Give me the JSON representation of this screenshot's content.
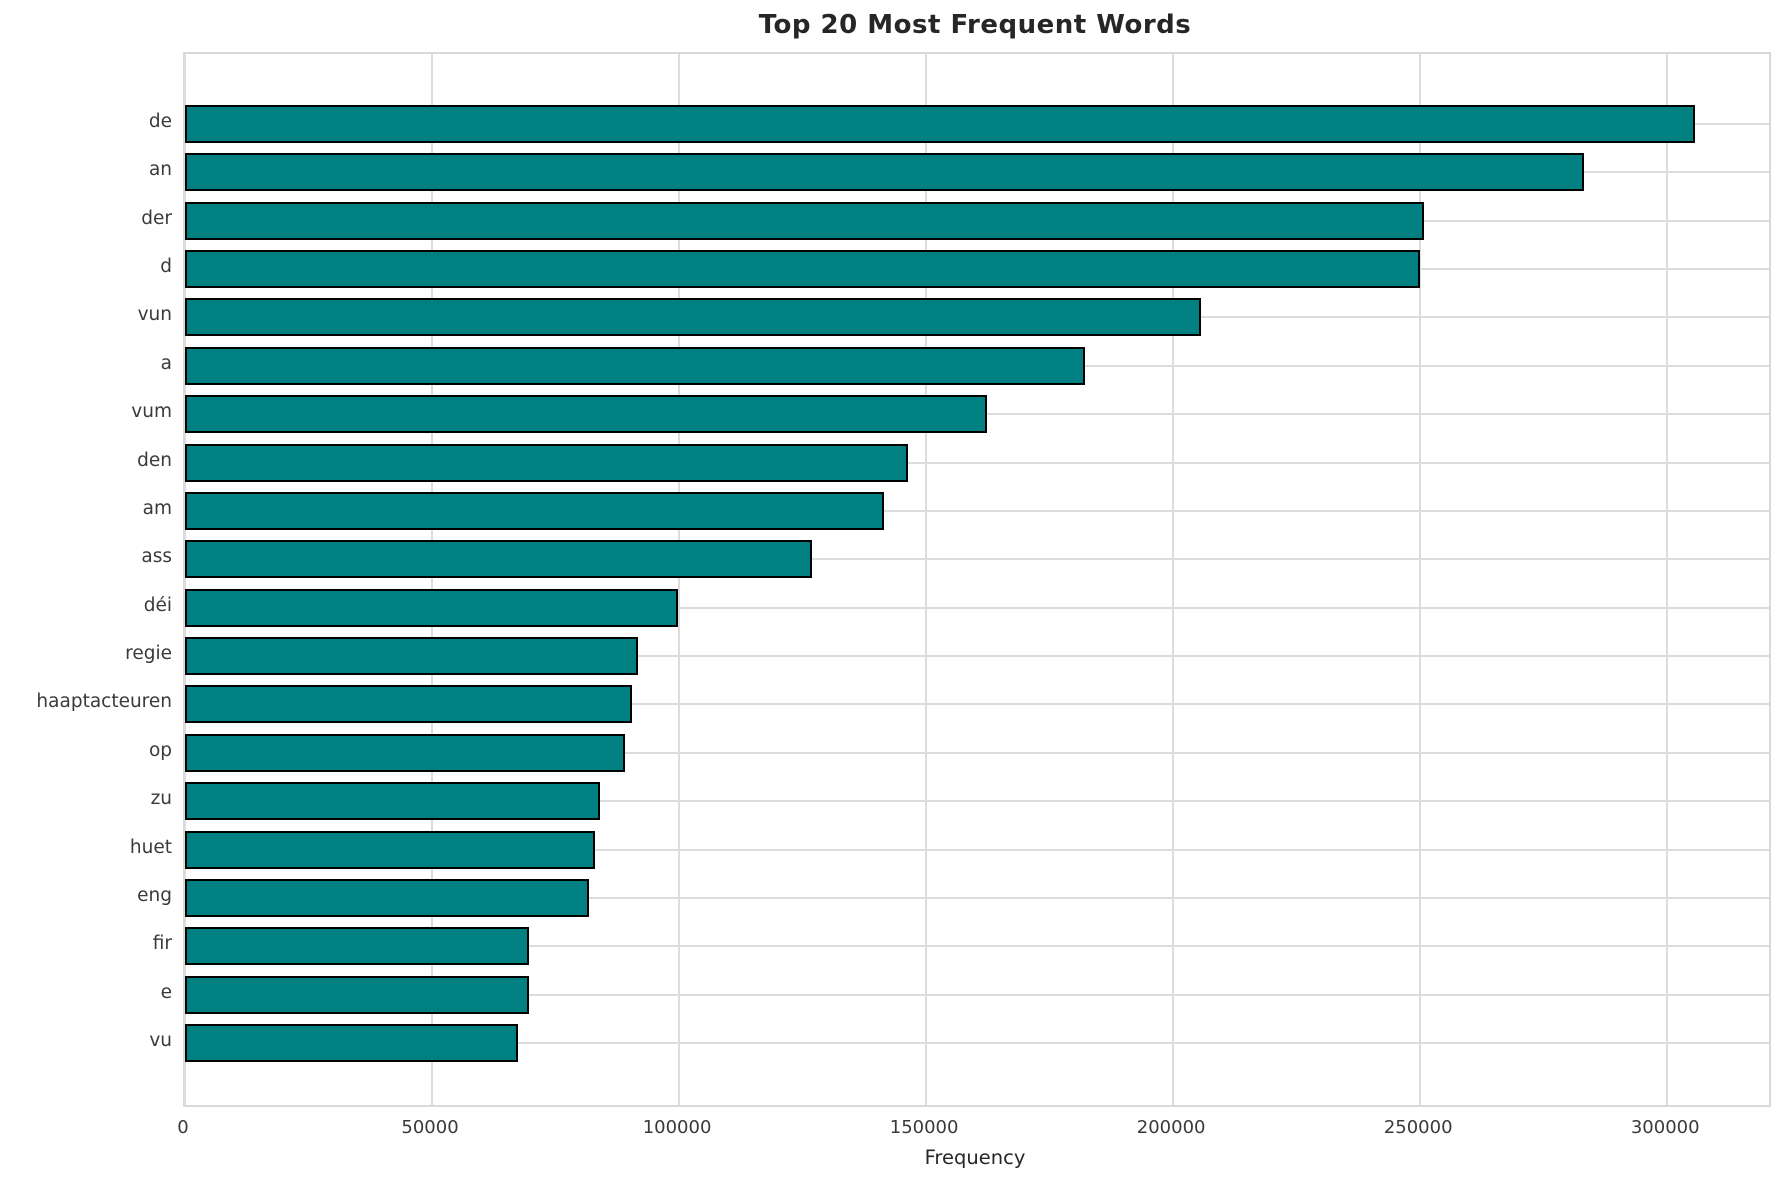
{
  "chart_data": {
    "type": "bar",
    "orientation": "horizontal",
    "title": "Top 20 Most Frequent Words",
    "xlabel": "Frequency",
    "ylabel": "",
    "categories": [
      "de",
      "an",
      "der",
      "d",
      "vun",
      "a",
      "vum",
      "den",
      "am",
      "ass",
      "déi",
      "regie",
      "haaptacteuren",
      "op",
      "zu",
      "huet",
      "eng",
      "fir",
      "e",
      "vu"
    ],
    "values": [
      305600,
      283200,
      250800,
      250000,
      205700,
      182200,
      162300,
      146400,
      141500,
      126900,
      99800,
      91700,
      90500,
      89100,
      84000,
      83000,
      81800,
      69700,
      69600,
      67400
    ],
    "xlim": [
      0,
      320600
    ],
    "x_ticks": [
      0,
      50000,
      100000,
      150000,
      200000,
      250000,
      300000
    ],
    "x_tick_labels": [
      "0",
      "50000",
      "100000",
      "150000",
      "200000",
      "250000",
      "300000"
    ],
    "grid": true,
    "legend_position": "none",
    "bar_color": "#008080",
    "bar_edge_color": "#000000",
    "grid_color": "#dcdcdc",
    "background_color": "#ffffff"
  }
}
